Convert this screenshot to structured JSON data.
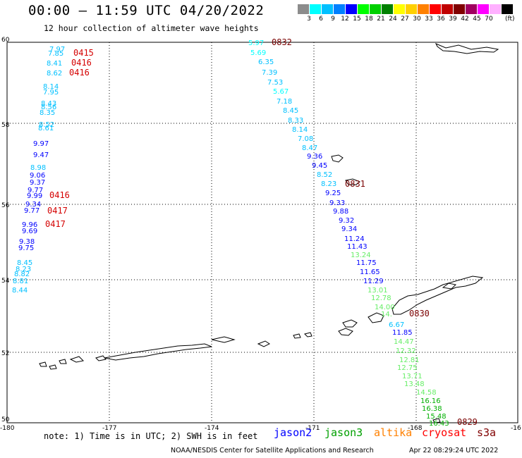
{
  "header": {
    "title": "00:00 – 11:59 UTC 04/20/2022",
    "subtitle": "12 hour collection of altimeter wave heights"
  },
  "legend": {
    "unit": "(ft)",
    "bins": [
      {
        "label": "",
        "color": "#8c8c8c"
      },
      {
        "label": "3",
        "color": "#00ffff"
      },
      {
        "label": "6",
        "color": "#00c0ff"
      },
      {
        "label": "9",
        "color": "#0080ff"
      },
      {
        "label": "12",
        "color": "#0000ff"
      },
      {
        "label": "15",
        "color": "#00ff00"
      },
      {
        "label": "18",
        "color": "#00d000"
      },
      {
        "label": "21",
        "color": "#008000"
      },
      {
        "label": "24",
        "color": "#ffff00"
      },
      {
        "label": "27",
        "color": "#ffd000"
      },
      {
        "label": "30",
        "color": "#ff8000"
      },
      {
        "label": "33",
        "color": "#ff0000"
      },
      {
        "label": "36",
        "color": "#c00000"
      },
      {
        "label": "39",
        "color": "#800000"
      },
      {
        "label": "42",
        "color": "#a00060"
      },
      {
        "label": "45",
        "color": "#ff00ff"
      },
      {
        "label": "70",
        "color": "#ffb0ff"
      },
      {
        "label": "",
        "color": "#000000"
      }
    ]
  },
  "axes": {
    "lon_ticks": [
      "-180",
      "-177",
      "-174",
      "-171",
      "-168",
      "-16"
    ],
    "lat_ticks": [
      "60",
      "58",
      "56",
      "54",
      "52",
      "50"
    ]
  },
  "observations": {
    "west_track": [
      {
        "v": "7.97",
        "c": "#00c0ff"
      },
      {
        "v": "7.85",
        "c": "#00c0ff"
      },
      {
        "v": "8.41",
        "c": "#00c0ff"
      },
      {
        "v": "8.62",
        "c": "#00c0ff"
      },
      {
        "v": "8.14",
        "c": "#00c0ff"
      },
      {
        "v": "7.95",
        "c": "#00c0ff"
      },
      {
        "v": "8.43",
        "c": "#00c0ff"
      },
      {
        "v": "8.56",
        "c": "#00c0ff"
      },
      {
        "v": "8.35",
        "c": "#00c0ff"
      },
      {
        "v": "8.52",
        "c": "#00c0ff"
      },
      {
        "v": "8.61",
        "c": "#00c0ff"
      },
      {
        "v": "9.97",
        "c": "#0000ff"
      },
      {
        "v": "9.47",
        "c": "#0000ff"
      },
      {
        "v": "8.98",
        "c": "#00c0ff"
      },
      {
        "v": "9.06",
        "c": "#0000ff"
      },
      {
        "v": "9.37",
        "c": "#0000ff"
      },
      {
        "v": "9.77",
        "c": "#0000ff"
      },
      {
        "v": "9.99",
        "c": "#0000ff"
      },
      {
        "v": "9.34",
        "c": "#0000ff"
      },
      {
        "v": "9.77",
        "c": "#0000ff"
      },
      {
        "v": "9.96",
        "c": "#0000ff"
      },
      {
        "v": "9.69",
        "c": "#0000ff"
      },
      {
        "v": "9.38",
        "c": "#0000ff"
      },
      {
        "v": "9.75",
        "c": "#0000ff"
      },
      {
        "v": "8.45",
        "c": "#00c0ff"
      },
      {
        "v": "8.23",
        "c": "#00c0ff"
      },
      {
        "v": "8.82",
        "c": "#00c0ff"
      },
      {
        "v": "8.81",
        "c": "#00c0ff"
      },
      {
        "v": "8.44",
        "c": "#00c0ff"
      }
    ],
    "west_times": [
      "0415",
      "0416",
      "0416",
      "0416",
      "0417",
      "0417"
    ],
    "east_track": [
      {
        "v": "5.97",
        "c": "#00ffff"
      },
      {
        "v": "5.69",
        "c": "#00ffff"
      },
      {
        "v": "6.35",
        "c": "#00c0ff"
      },
      {
        "v": "7.39",
        "c": "#00c0ff"
      },
      {
        "v": "7.53",
        "c": "#00c0ff"
      },
      {
        "v": "5.67",
        "c": "#00ffff"
      },
      {
        "v": "7.18",
        "c": "#00c0ff"
      },
      {
        "v": "8.45",
        "c": "#00c0ff"
      },
      {
        "v": "8.33",
        "c": "#00c0ff"
      },
      {
        "v": "8.14",
        "c": "#00c0ff"
      },
      {
        "v": "7.08",
        "c": "#00c0ff"
      },
      {
        "v": "8.47",
        "c": "#00c0ff"
      },
      {
        "v": "9.36",
        "c": "#0000ff"
      },
      {
        "v": "9.45",
        "c": "#0000ff"
      },
      {
        "v": "8.52",
        "c": "#00c0ff"
      },
      {
        "v": "8.23",
        "c": "#00c0ff"
      },
      {
        "v": "9.25",
        "c": "#0000ff"
      },
      {
        "v": "9.33",
        "c": "#0000ff"
      },
      {
        "v": "9.88",
        "c": "#0000ff"
      },
      {
        "v": "9.32",
        "c": "#0000ff"
      },
      {
        "v": "9.34",
        "c": "#0000ff"
      },
      {
        "v": "11.24",
        "c": "#0000ff"
      },
      {
        "v": "11.43",
        "c": "#0000ff"
      },
      {
        "v": "13.24",
        "c": "#66ee66"
      },
      {
        "v": "11.75",
        "c": "#0000ff"
      },
      {
        "v": "11.65",
        "c": "#0000ff"
      },
      {
        "v": "11.29",
        "c": "#0000ff"
      },
      {
        "v": "13.01",
        "c": "#66ee66"
      },
      {
        "v": "12.78",
        "c": "#66ee66"
      },
      {
        "v": "14.00",
        "c": "#66ee66"
      },
      {
        "v": "14.",
        "c": "#66ee66"
      },
      {
        "v": "6.67",
        "c": "#00c0ff"
      },
      {
        "v": "11.85",
        "c": "#0000ff"
      },
      {
        "v": "14.47",
        "c": "#66ee66"
      },
      {
        "v": "12.32",
        "c": "#66ee66"
      },
      {
        "v": "12.81",
        "c": "#66ee66"
      },
      {
        "v": "12.75",
        "c": "#66ee66"
      },
      {
        "v": "13.71",
        "c": "#66ee66"
      },
      {
        "v": "13.48",
        "c": "#66ee66"
      },
      {
        "v": "14.58",
        "c": "#66ee66"
      },
      {
        "v": "16.16",
        "c": "#00b000"
      },
      {
        "v": "16.38",
        "c": "#00b000"
      },
      {
        "v": "15.48",
        "c": "#00b000"
      },
      {
        "v": "16.43",
        "c": "#00b000"
      }
    ],
    "east_times": [
      "0832",
      "0831",
      "0830",
      "0829"
    ]
  },
  "footer": {
    "note": "note:  1) Time is in UTC;  2) SWH is in feet",
    "satellites": [
      {
        "name": "jason2",
        "color": "#0000ff"
      },
      {
        "name": "jason3",
        "color": "#00a000"
      },
      {
        "name": "altika",
        "color": "#ff8000"
      },
      {
        "name": "cryosat",
        "color": "#ff0000"
      },
      {
        "name": "s3a",
        "color": "#800000"
      }
    ],
    "credit": "NOAA/NESDIS Center for Satellite Applications and Research",
    "generated": "Apr 22 08:29:24 UTC 2022"
  }
}
